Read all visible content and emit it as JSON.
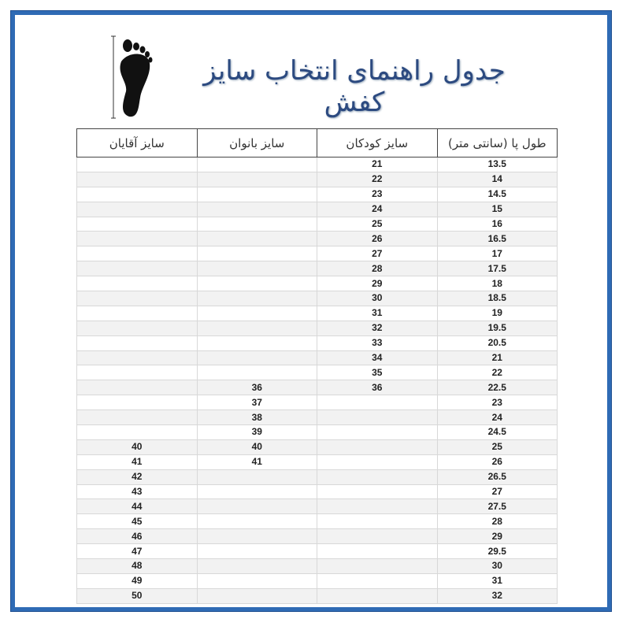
{
  "title": "جدول راهنمای انتخاب سایز کفش",
  "icon": "foot-length-icon",
  "colors": {
    "frame": "#2f6bb5",
    "title": "#2c4a80"
  },
  "table": {
    "headers": [
      "طول پا (سانتی متر)",
      "سایز کودکان",
      "سایز بانوان",
      "سایز آقایان"
    ],
    "rows": [
      [
        "13.5",
        "21",
        "",
        ""
      ],
      [
        "14",
        "22",
        "",
        ""
      ],
      [
        "14.5",
        "23",
        "",
        ""
      ],
      [
        "15",
        "24",
        "",
        ""
      ],
      [
        "16",
        "25",
        "",
        ""
      ],
      [
        "16.5",
        "26",
        "",
        ""
      ],
      [
        "17",
        "27",
        "",
        ""
      ],
      [
        "17.5",
        "28",
        "",
        ""
      ],
      [
        "18",
        "29",
        "",
        ""
      ],
      [
        "18.5",
        "30",
        "",
        ""
      ],
      [
        "19",
        "31",
        "",
        ""
      ],
      [
        "19.5",
        "32",
        "",
        ""
      ],
      [
        "20.5",
        "33",
        "",
        ""
      ],
      [
        "21",
        "34",
        "",
        ""
      ],
      [
        "22",
        "35",
        "",
        ""
      ],
      [
        "22.5",
        "36",
        "36",
        ""
      ],
      [
        "23",
        "",
        "37",
        ""
      ],
      [
        "24",
        "",
        "38",
        ""
      ],
      [
        "24.5",
        "",
        "39",
        ""
      ],
      [
        "25",
        "",
        "40",
        "40"
      ],
      [
        "26",
        "",
        "41",
        "41"
      ],
      [
        "26.5",
        "",
        "",
        "42"
      ],
      [
        "27",
        "",
        "",
        "43"
      ],
      [
        "27.5",
        "",
        "",
        "44"
      ],
      [
        "28",
        "",
        "",
        "45"
      ],
      [
        "29",
        "",
        "",
        "46"
      ],
      [
        "29.5",
        "",
        "",
        "47"
      ],
      [
        "30",
        "",
        "",
        "48"
      ],
      [
        "31",
        "",
        "",
        "49"
      ],
      [
        "32",
        "",
        "",
        "50"
      ]
    ]
  }
}
